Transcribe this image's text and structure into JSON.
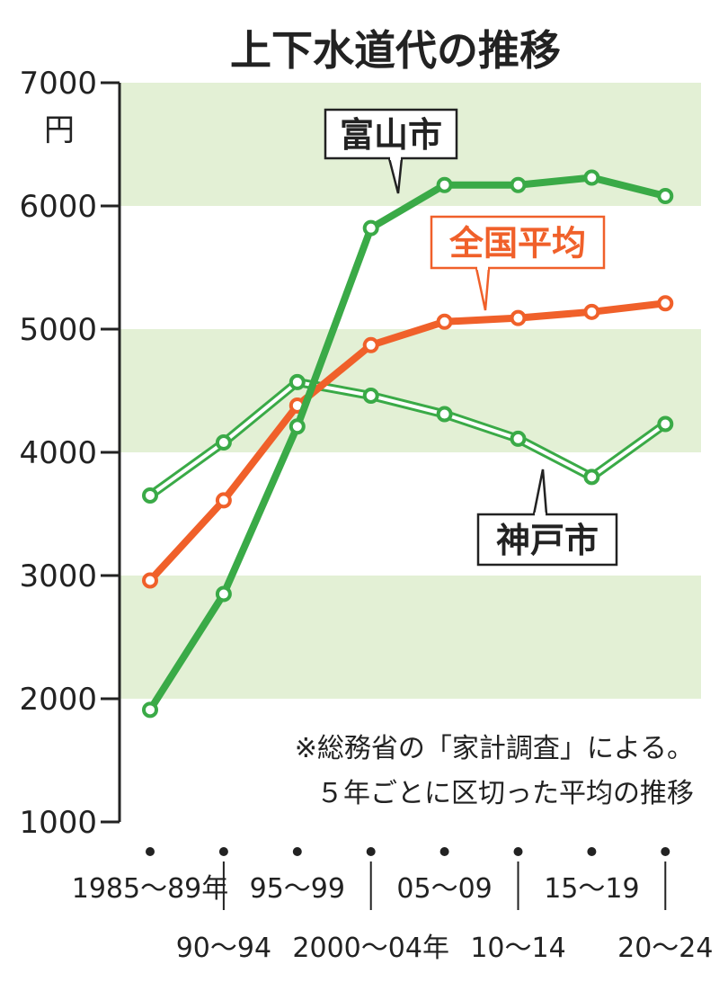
{
  "chart_data": {
    "type": "line",
    "title": "上下水道代の推移",
    "ylabel": "円",
    "ylim": [
      1000,
      7000
    ],
    "yticks": [
      "1000",
      "2000",
      "3000",
      "4000",
      "5000",
      "6000",
      "7000"
    ],
    "grid": "alternating horizontal bands",
    "categories": [
      "1985～89年",
      "90～94",
      "95～99",
      "2000～04年",
      "05～09",
      "10～14",
      "15～19",
      "20～24"
    ],
    "series": [
      {
        "name": "富山市",
        "color": "#3aaa47",
        "style": "solid",
        "values": [
          1910,
          2850,
          4210,
          5820,
          6170,
          6170,
          6230,
          6080
        ]
      },
      {
        "name": "全国平均",
        "color": "#f0602a",
        "style": "solid",
        "values": [
          2960,
          3610,
          4380,
          4870,
          5060,
          5090,
          5140,
          5210
        ]
      },
      {
        "name": "神戸市",
        "color": "#3aaa47",
        "style": "hollow",
        "values": [
          3650,
          4080,
          4570,
          4460,
          4310,
          4110,
          3800,
          4230
        ]
      }
    ],
    "annotations": [
      "※総務省の「家計調査」による。",
      "５年ごとに区切った平均の推移"
    ],
    "colors": {
      "band": "#e3f0d5",
      "axis": "#222222"
    }
  }
}
